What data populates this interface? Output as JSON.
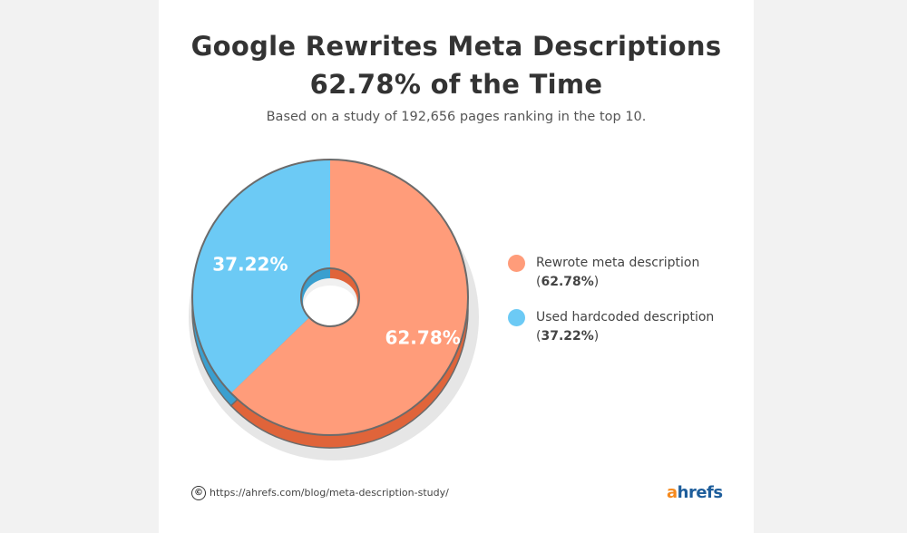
{
  "title_line1": "Google Rewrites Meta Descriptions",
  "title_line2": "62.78% of the Time",
  "subtitle": "Based on a study of 192,656 pages ranking in the top 10.",
  "chart_data": {
    "type": "pie",
    "title": "Google Rewrites Meta Descriptions 62.78% of the Time",
    "subtitle": "Based on a study of 192,656 pages ranking in the top 10.",
    "slices": [
      {
        "label": "Rewrote meta description",
        "value": 62.78,
        "display": "62.78%",
        "color": "#ff9c7a",
        "side_color": "#e0643a"
      },
      {
        "label": "Used hardcoded description",
        "value": 37.22,
        "display": "37.22%",
        "color": "#6ccaf5",
        "side_color": "#3a9fcf"
      }
    ],
    "legend_position": "right"
  },
  "legend": [
    {
      "label": "Rewrote meta description",
      "value_open": "(",
      "value": "62.78%",
      "value_close": ")"
    },
    {
      "label": "Used hardcoded description",
      "value_open": "(",
      "value": "37.22%",
      "value_close": ")"
    }
  ],
  "footer": {
    "copyright_icon": "©",
    "url": "https://ahrefs.com/blog/meta-description-study/",
    "brand_a": "a",
    "brand_rest": "hrefs"
  }
}
